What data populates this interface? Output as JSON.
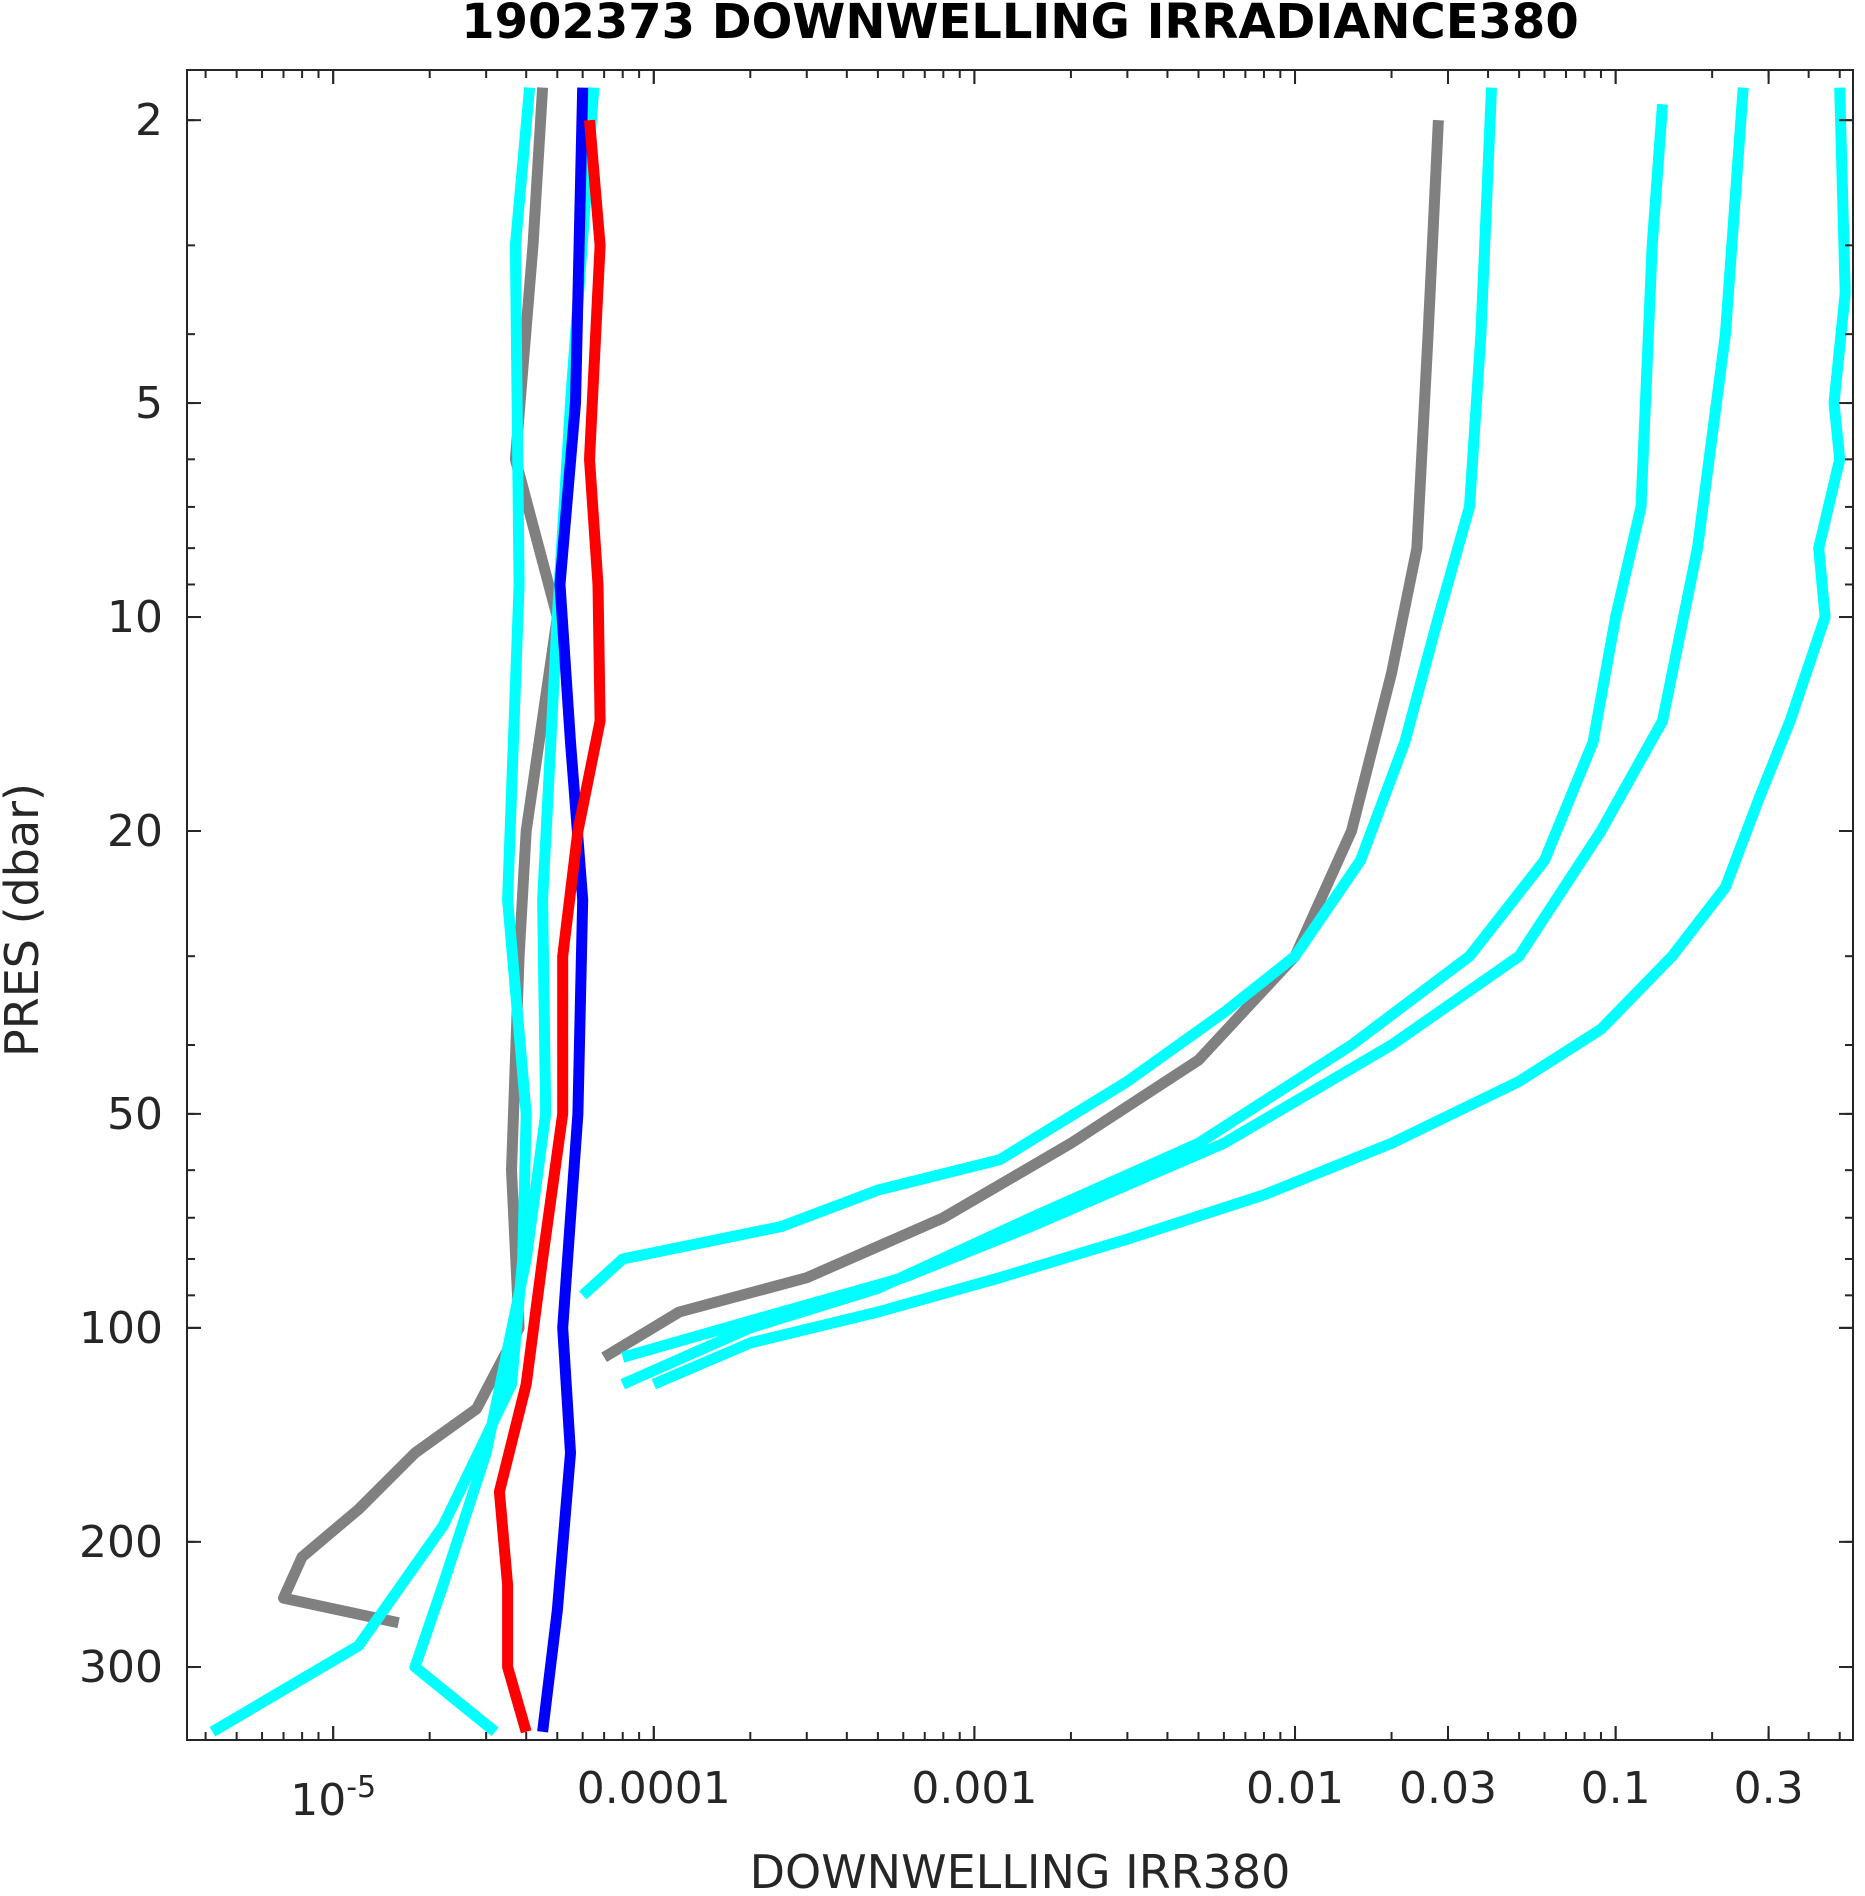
{
  "chart_data": {
    "type": "line",
    "title": "1902373  DOWNWELLING IRRADIANCE380",
    "xlabel": "DOWNWELLING IRR380",
    "ylabel": "PRES (dbar)",
    "xscale": "log",
    "yscale": "log",
    "y_reversed": true,
    "xlim": [
      3.5e-06,
      0.55
    ],
    "ylim": [
      1.7,
      380
    ],
    "grid": false,
    "x_ticks": [
      {
        "value": 1e-05,
        "base": "10",
        "exp": "-5"
      },
      {
        "value": 0.0001,
        "label": "0.0001"
      },
      {
        "value": 0.001,
        "label": "0.001"
      },
      {
        "value": 0.01,
        "label": "0.01"
      },
      {
        "value": 0.03,
        "label": "0.03"
      },
      {
        "value": 0.1,
        "label": "0.1"
      },
      {
        "value": 0.3,
        "label": "0.3"
      }
    ],
    "y_ticks": [
      {
        "value": 2,
        "label": "2"
      },
      {
        "value": 5,
        "label": "5"
      },
      {
        "value": 10,
        "label": "10"
      },
      {
        "value": 20,
        "label": "20"
      },
      {
        "value": 50,
        "label": "50"
      },
      {
        "value": 100,
        "label": "100"
      },
      {
        "value": 200,
        "label": "200"
      },
      {
        "value": 300,
        "label": "300"
      }
    ],
    "series": [
      {
        "color": "#808080",
        "points": [
          [
            4.5e-05,
            1.8
          ],
          [
            4.2e-05,
            3.0
          ],
          [
            3.7e-05,
            6.0
          ],
          [
            5e-05,
            10.0
          ],
          [
            4e-05,
            20.0
          ],
          [
            3.8e-05,
            30.0
          ],
          [
            3.6e-05,
            60.0
          ],
          [
            3.8e-05,
            100.0
          ],
          [
            2.8e-05,
            130.0
          ],
          [
            1.8e-05,
            150.0
          ],
          [
            1.2e-05,
            180.0
          ],
          [
            8e-06,
            210.0
          ],
          [
            7e-06,
            240.0
          ],
          [
            1.6e-05,
            260.0
          ]
        ]
      },
      {
        "color": "#00FFFF",
        "points": [
          [
            4.1e-05,
            1.8
          ],
          [
            3.7e-05,
            3.0
          ],
          [
            3.8e-05,
            9.0
          ],
          [
            3.5e-05,
            25.0
          ],
          [
            4e-05,
            50.0
          ],
          [
            3.9e-05,
            80.0
          ],
          [
            3.6e-05,
            120.0
          ],
          [
            2.2e-05,
            190.0
          ],
          [
            1.2e-05,
            280.0
          ],
          [
            4.2e-06,
            370.0
          ]
        ]
      },
      {
        "color": "#00FFFF",
        "points": [
          [
            6.5e-05,
            1.8
          ],
          [
            5.5e-05,
            5.0
          ],
          [
            5e-05,
            10.0
          ],
          [
            4.5e-05,
            25.0
          ],
          [
            4.6e-05,
            50.0
          ],
          [
            4e-05,
            80.0
          ],
          [
            3e-05,
            150.0
          ],
          [
            2.2e-05,
            230.0
          ],
          [
            1.8e-05,
            300.0
          ],
          [
            3.2e-05,
            370.0
          ]
        ]
      },
      {
        "color": "#0000FF",
        "points": [
          [
            6e-05,
            1.8
          ],
          [
            5.7e-05,
            5.0
          ],
          [
            5.1e-05,
            9.0
          ],
          [
            5.5e-05,
            15.0
          ],
          [
            6e-05,
            25.0
          ],
          [
            5.8e-05,
            50.0
          ],
          [
            5.2e-05,
            100.0
          ],
          [
            5.5e-05,
            150.0
          ],
          [
            5e-05,
            250.0
          ],
          [
            4.5e-05,
            370.0
          ]
        ]
      },
      {
        "color": "#FF0000",
        "points": [
          [
            6.3e-05,
            2.0
          ],
          [
            6.8e-05,
            3.0
          ],
          [
            6.3e-05,
            6.0
          ],
          [
            6.7e-05,
            9.0
          ],
          [
            6.8e-05,
            14.0
          ],
          [
            5.8e-05,
            20.0
          ],
          [
            5.2e-05,
            30.0
          ],
          [
            5.2e-05,
            50.0
          ],
          [
            4.5e-05,
            80.0
          ],
          [
            4e-05,
            120.0
          ],
          [
            3.3e-05,
            170.0
          ],
          [
            3.5e-05,
            230.0
          ],
          [
            3.5e-05,
            300.0
          ],
          [
            4e-05,
            370.0
          ]
        ]
      },
      {
        "color": "#808080",
        "points": [
          [
            0.028,
            2.0
          ],
          [
            0.026,
            4.0
          ],
          [
            0.024,
            8.0
          ],
          [
            0.02,
            12.0
          ],
          [
            0.015,
            20.0
          ],
          [
            0.01,
            30.0
          ],
          [
            0.005,
            42.0
          ],
          [
            0.002,
            55.0
          ],
          [
            0.0008,
            70.0
          ],
          [
            0.0003,
            85.0
          ],
          [
            0.00012,
            95.0
          ],
          [
            7e-05,
            110.0
          ]
        ]
      },
      {
        "color": "#00FFFF",
        "points": [
          [
            0.041,
            1.8
          ],
          [
            0.038,
            4.0
          ],
          [
            0.035,
            7.0
          ],
          [
            0.028,
            10.0
          ],
          [
            0.022,
            15.0
          ],
          [
            0.016,
            22.0
          ],
          [
            0.01,
            30.0
          ],
          [
            0.006,
            36.0
          ],
          [
            0.003,
            45.0
          ],
          [
            0.0012,
            58.0
          ],
          [
            0.0005,
            64.0
          ],
          [
            0.00025,
            72.0
          ],
          [
            8e-05,
            80.0
          ],
          [
            6e-05,
            90.0
          ]
        ]
      },
      {
        "color": "#00FFFF",
        "points": [
          [
            0.14,
            1.9
          ],
          [
            0.13,
            3.0
          ],
          [
            0.12,
            7.0
          ],
          [
            0.1,
            10.0
          ],
          [
            0.085,
            15.0
          ],
          [
            0.06,
            22.0
          ],
          [
            0.035,
            30.0
          ],
          [
            0.015,
            40.0
          ],
          [
            0.005,
            55.0
          ],
          [
            0.0015,
            70.0
          ],
          [
            0.0005,
            88.0
          ],
          [
            0.0002,
            100.0
          ],
          [
            8e-05,
            120.0
          ]
        ]
      },
      {
        "color": "#00FFFF",
        "points": [
          [
            0.25,
            1.8
          ],
          [
            0.22,
            4.0
          ],
          [
            0.18,
            8.0
          ],
          [
            0.14,
            14.0
          ],
          [
            0.09,
            20.0
          ],
          [
            0.05,
            30.0
          ],
          [
            0.02,
            40.0
          ],
          [
            0.006,
            55.0
          ],
          [
            0.0015,
            72.0
          ],
          [
            0.0006,
            85.0
          ],
          [
            0.00025,
            95.0
          ],
          [
            8e-05,
            110.0
          ]
        ]
      },
      {
        "color": "#00FFFF",
        "points": [
          [
            0.5,
            1.8
          ],
          [
            0.52,
            3.5
          ],
          [
            0.48,
            5.0
          ],
          [
            0.5,
            6.0
          ],
          [
            0.43,
            8.0
          ],
          [
            0.45,
            10.0
          ],
          [
            0.35,
            14.0
          ],
          [
            0.28,
            18.0
          ],
          [
            0.22,
            24.0
          ],
          [
            0.15,
            30.0
          ],
          [
            0.09,
            38.0
          ],
          [
            0.05,
            45.0
          ],
          [
            0.02,
            55.0
          ],
          [
            0.008,
            65.0
          ],
          [
            0.003,
            75.0
          ],
          [
            0.0012,
            85.0
          ],
          [
            0.0005,
            95.0
          ],
          [
            0.0002,
            105.0
          ],
          [
            0.0001,
            120.0
          ]
        ]
      }
    ]
  }
}
